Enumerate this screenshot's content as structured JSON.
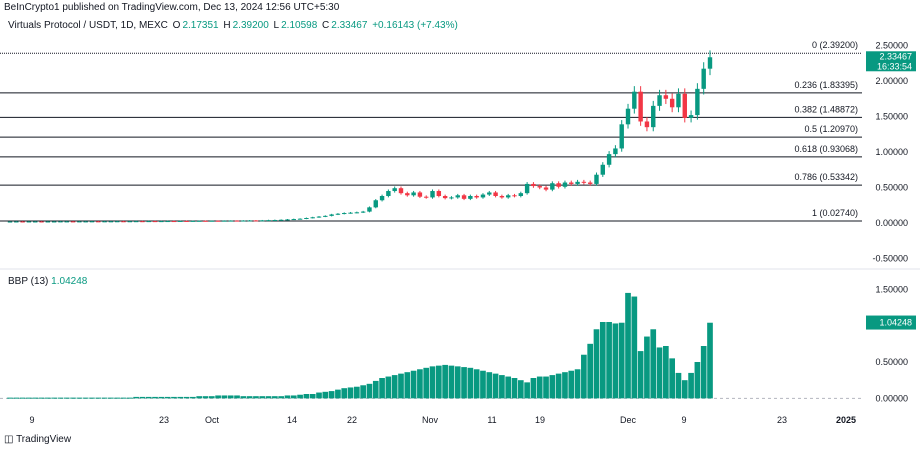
{
  "header": {
    "publisher": "BeInCrypto1 published on TradingView.com, Dec 13, 2024 12:56 UTC+5:30"
  },
  "legend": {
    "symbol": "Virtuals Protocol / USDT, 1D, MEXC",
    "o_label": "O",
    "o_value": "2.17351",
    "h_label": "H",
    "h_value": "2.39200",
    "l_label": "L",
    "l_value": "2.10598",
    "c_label": "C",
    "c_value": "2.33467",
    "change": "+0.16143 (+7.43%)"
  },
  "price_tag": {
    "value": "2.33467",
    "countdown": "16:33:54"
  },
  "bbp": {
    "label": "BBP (13)",
    "value": "1.04248"
  },
  "logo_text": "TradingView",
  "colors": {
    "up": "#089981",
    "down": "#f23645",
    "fib_line": "#131722"
  },
  "chart_data": [
    {
      "type": "candlestick",
      "symbol": "Virtuals Protocol / USDT",
      "timeframe": "1D",
      "exchange": "MEXC",
      "y_ticks": [
        "2.50000",
        "2.00000",
        "1.50000",
        "1.00000",
        "0.50000",
        "0.00000",
        "-0.50000"
      ],
      "ylim": [
        -0.55,
        2.55
      ],
      "x_ticks": [
        "9",
        "23",
        "Oct",
        "14",
        "22",
        "Nov",
        "11",
        "19",
        "Dec",
        "9",
        "23",
        "2025"
      ],
      "fib_levels": [
        {
          "label": "0 (2.39200)",
          "value": 2.392
        },
        {
          "label": "0.236 (1.83395)",
          "value": 1.83395
        },
        {
          "label": "0.382 (1.48872)",
          "value": 1.48872
        },
        {
          "label": "0.5 (1.20970)",
          "value": 1.2097
        },
        {
          "label": "0.618 (0.93068)",
          "value": 0.93068
        },
        {
          "label": "0.786 (0.53342)",
          "value": 0.53342
        },
        {
          "label": "1 (0.02740)",
          "value": 0.0274
        }
      ],
      "closes": [
        0.02,
        0.021,
        0.02,
        0.021,
        0.021,
        0.02,
        0.021,
        0.021,
        0.022,
        0.022,
        0.021,
        0.022,
        0.022,
        0.023,
        0.022,
        0.023,
        0.023,
        0.024,
        0.023,
        0.024,
        0.025,
        0.024,
        0.026,
        0.025,
        0.026,
        0.027,
        0.026,
        0.028,
        0.027,
        0.029,
        0.03,
        0.029,
        0.031,
        0.03,
        0.032,
        0.033,
        0.032,
        0.034,
        0.036,
        0.035,
        0.037,
        0.04,
        0.042,
        0.045,
        0.05,
        0.055,
        0.06,
        0.07,
        0.08,
        0.09,
        0.1,
        0.12,
        0.13,
        0.14,
        0.145,
        0.15,
        0.16,
        0.22,
        0.32,
        0.38,
        0.45,
        0.49,
        0.42,
        0.39,
        0.43,
        0.37,
        0.36,
        0.45,
        0.38,
        0.35,
        0.36,
        0.39,
        0.34,
        0.38,
        0.36,
        0.4,
        0.43,
        0.38,
        0.36,
        0.39,
        0.38,
        0.42,
        0.55,
        0.52,
        0.5,
        0.47,
        0.56,
        0.51,
        0.57,
        0.55,
        0.58,
        0.57,
        0.55,
        0.68,
        0.82,
        0.97,
        1.05,
        1.39,
        1.61,
        1.85,
        1.43,
        1.35,
        1.65,
        1.8,
        1.75,
        1.63,
        1.82,
        1.48,
        1.52,
        1.89,
        2.174,
        2.335
      ],
      "volume_osc": [
        0.01,
        0.01,
        0.01,
        0.01,
        0.01,
        0.01,
        0.01,
        0.01,
        0.01,
        0.01,
        0.01,
        0.01,
        0.01,
        0.01,
        0.01,
        0.01,
        0.01,
        0.01,
        0.01,
        0.01,
        0.02,
        0.02,
        0.02,
        0.02,
        0.02,
        0.02,
        0.02,
        0.02,
        0.02,
        0.02,
        0.03,
        0.03,
        0.03,
        0.04,
        0.04,
        0.04,
        0.04,
        0.03,
        0.03,
        0.03,
        0.03,
        0.03,
        0.03,
        0.03,
        0.04,
        0.04,
        0.05,
        0.06,
        0.06,
        0.08,
        0.09,
        0.1,
        0.12,
        0.14,
        0.15,
        0.16,
        0.18,
        0.2,
        0.24,
        0.28,
        0.3,
        0.32,
        0.34,
        0.36,
        0.38,
        0.4,
        0.42,
        0.44,
        0.45,
        0.46,
        0.45,
        0.44,
        0.43,
        0.42,
        0.4,
        0.38,
        0.36,
        0.34,
        0.32,
        0.3,
        0.28,
        0.25,
        0.22,
        0.28,
        0.3,
        0.3,
        0.32,
        0.34,
        0.36,
        0.38,
        0.4,
        0.6,
        0.75,
        0.95,
        1.05,
        1.05,
        1.03,
        1.04,
        1.45,
        1.4,
        0.65,
        0.85,
        0.95,
        0.7,
        0.72,
        0.55,
        0.35,
        0.25,
        0.35,
        0.5,
        0.72,
        1.04
      ]
    }
  ]
}
